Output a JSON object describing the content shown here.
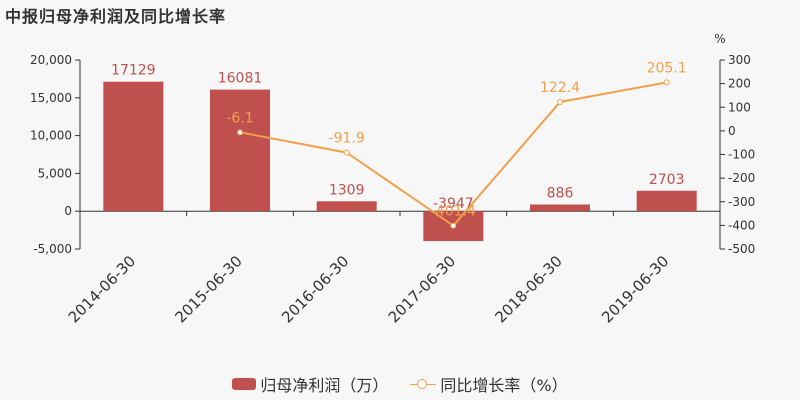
{
  "title": "中报归母净利润及同比增长率",
  "chart_data": {
    "type": "bar",
    "categories": [
      "2014-06-30",
      "2015-06-30",
      "2016-06-30",
      "2017-06-30",
      "2018-06-30",
      "2019-06-30"
    ],
    "series": [
      {
        "name": "归母净利润（万）",
        "type": "bar",
        "axis": "left",
        "values": [
          17129,
          16081,
          1309,
          -3947,
          886,
          2703
        ],
        "labels": [
          "17129",
          "16081",
          "1309",
          "-3947",
          "886",
          "2703"
        ],
        "color": "#c0504d"
      },
      {
        "name": "同比增长率（%）",
        "type": "line",
        "axis": "right",
        "values": [
          null,
          -6.1,
          -91.9,
          -401.4,
          122.4,
          205.1
        ],
        "labels": [
          "",
          "-6.1",
          "-91.9",
          "-401.4",
          "122.4",
          "205.1"
        ],
        "color": "#f0a04b"
      }
    ],
    "y_left": {
      "min": -5000,
      "max": 20000,
      "ticks": [
        20000,
        15000,
        10000,
        5000,
        0,
        -5000
      ],
      "tick_labels": [
        "20,000",
        "15,000",
        "10,000",
        "5,000",
        "0",
        "-5,000"
      ]
    },
    "y_right": {
      "min": -500,
      "max": 300,
      "unit": "%",
      "ticks": [
        300,
        200,
        100,
        0,
        -100,
        -200,
        -300,
        -400,
        -500
      ],
      "tick_labels": [
        "300",
        "200",
        "100",
        "0",
        "-100",
        "-200",
        "-300",
        "-400",
        "-500"
      ]
    },
    "grid": false,
    "legend_position": "bottom"
  },
  "legend": {
    "bar_label": "归母净利润（万）",
    "line_label": "同比增长率（%）"
  }
}
